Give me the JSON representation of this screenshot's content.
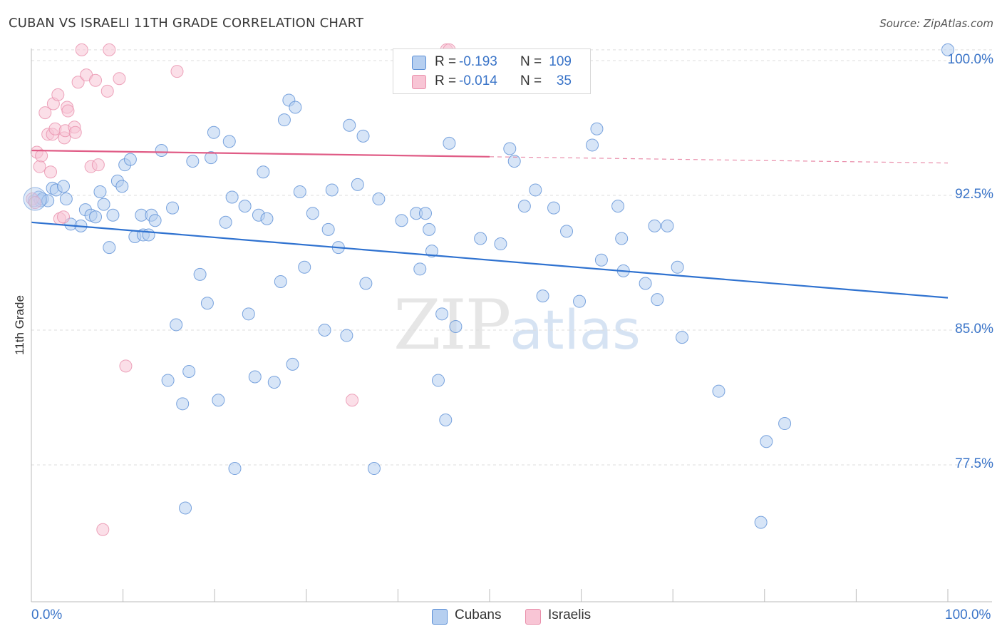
{
  "title": "CUBAN VS ISRAELI 11TH GRADE CORRELATION CHART",
  "source": "Source: ZipAtlas.com",
  "watermark": {
    "zip": "ZIP",
    "atlas": "atlas"
  },
  "colors": {
    "cubans_fill": "#b6cff0",
    "cubans_stroke": "#5b8fd6",
    "cubans_line": "#2f72d0",
    "israelis_fill": "#f8c5d5",
    "israelis_stroke": "#e98fab",
    "israelis_line": "#e05c86",
    "label_blue": "#3a74c8",
    "grid": "#dedede"
  },
  "legend_top": [
    {
      "r_label": "R =",
      "r_value": "-0.193",
      "n_label": "N =",
      "n_value": "109"
    },
    {
      "r_label": "R =",
      "r_value": "-0.014",
      "n_label": "N =",
      "n_value": "35"
    }
  ],
  "legend_bottom": [
    "Cubans",
    "Israelis"
  ],
  "chart_data": {
    "type": "scatter",
    "title": "CUBAN VS ISRAELI 11TH GRADE CORRELATION CHART",
    "xlabel": "",
    "ylabel": "11th Grade",
    "xlim": [
      0,
      100
    ],
    "ylim": [
      71.5,
      101
    ],
    "x_tick_labels": [
      "0.0%",
      "100.0%"
    ],
    "y_ticks": [
      77.5,
      85.0,
      92.5,
      100.0
    ],
    "y_tick_labels": [
      "77.5%",
      "85.0%",
      "92.5%",
      "100.0%"
    ],
    "grid": true,
    "legend_position": "bottom",
    "series": [
      {
        "name": "Cubans",
        "R": -0.193,
        "N": 109,
        "trend": {
          "x": [
            0,
            100
          ],
          "y": [
            91.0,
            86.8
          ],
          "solid_until": 100
        },
        "points": [
          [
            0.3,
            92.2
          ],
          [
            0.8,
            92.4
          ],
          [
            1.0,
            92.2
          ],
          [
            1.2,
            92.3
          ],
          [
            1.8,
            92.2
          ],
          [
            2.3,
            92.9
          ],
          [
            2.7,
            92.8
          ],
          [
            3.5,
            93.0
          ],
          [
            3.8,
            92.3
          ],
          [
            4.3,
            90.9
          ],
          [
            5.4,
            90.8
          ],
          [
            5.9,
            91.7
          ],
          [
            6.5,
            91.4
          ],
          [
            7.0,
            91.3
          ],
          [
            7.5,
            92.7
          ],
          [
            7.9,
            92.0
          ],
          [
            8.5,
            89.6
          ],
          [
            8.9,
            91.4
          ],
          [
            9.4,
            93.3
          ],
          [
            9.9,
            93.0
          ],
          [
            10.2,
            94.2
          ],
          [
            10.8,
            94.5
          ],
          [
            11.3,
            90.2
          ],
          [
            12.0,
            91.4
          ],
          [
            12.2,
            90.3
          ],
          [
            12.8,
            90.3
          ],
          [
            13.1,
            91.4
          ],
          [
            13.5,
            91.1
          ],
          [
            14.2,
            95.0
          ],
          [
            14.9,
            82.2
          ],
          [
            15.4,
            91.8
          ],
          [
            15.8,
            85.3
          ],
          [
            16.5,
            80.9
          ],
          [
            16.8,
            75.1
          ],
          [
            17.2,
            82.7
          ],
          [
            17.6,
            94.4
          ],
          [
            18.4,
            88.1
          ],
          [
            19.2,
            86.5
          ],
          [
            19.6,
            94.6
          ],
          [
            19.9,
            96.0
          ],
          [
            20.4,
            81.1
          ],
          [
            21.2,
            91.0
          ],
          [
            21.6,
            95.5
          ],
          [
            21.9,
            92.4
          ],
          [
            22.2,
            77.3
          ],
          [
            23.3,
            91.9
          ],
          [
            23.7,
            85.9
          ],
          [
            24.4,
            82.4
          ],
          [
            24.8,
            91.4
          ],
          [
            25.3,
            93.8
          ],
          [
            25.7,
            91.2
          ],
          [
            26.5,
            82.1
          ],
          [
            27.2,
            87.7
          ],
          [
            27.6,
            96.7
          ],
          [
            28.1,
            97.8
          ],
          [
            28.5,
            83.1
          ],
          [
            28.8,
            97.4
          ],
          [
            29.3,
            92.7
          ],
          [
            29.8,
            88.5
          ],
          [
            30.7,
            91.5
          ],
          [
            32.0,
            85.0
          ],
          [
            32.4,
            90.6
          ],
          [
            32.8,
            92.8
          ],
          [
            33.5,
            89.6
          ],
          [
            34.4,
            84.7
          ],
          [
            34.7,
            96.4
          ],
          [
            35.6,
            93.1
          ],
          [
            36.2,
            95.8
          ],
          [
            36.5,
            87.6
          ],
          [
            37.4,
            77.3
          ],
          [
            37.9,
            92.3
          ],
          [
            40.4,
            91.1
          ],
          [
            42.0,
            91.5
          ],
          [
            42.4,
            88.4
          ],
          [
            43.0,
            91.5
          ],
          [
            43.4,
            90.6
          ],
          [
            43.7,
            89.4
          ],
          [
            44.4,
            82.2
          ],
          [
            44.8,
            85.9
          ],
          [
            45.2,
            80.0
          ],
          [
            45.6,
            95.4
          ],
          [
            46.3,
            85.2
          ],
          [
            49.0,
            90.1
          ],
          [
            51.2,
            89.8
          ],
          [
            52.2,
            95.1
          ],
          [
            52.7,
            94.4
          ],
          [
            53.8,
            91.9
          ],
          [
            55.0,
            92.8
          ],
          [
            55.8,
            86.9
          ],
          [
            57.0,
            91.8
          ],
          [
            58.4,
            90.5
          ],
          [
            59.8,
            86.6
          ],
          [
            61.2,
            95.3
          ],
          [
            61.7,
            96.2
          ],
          [
            62.2,
            88.9
          ],
          [
            64.0,
            91.9
          ],
          [
            64.4,
            90.1
          ],
          [
            64.6,
            88.3
          ],
          [
            67.0,
            87.6
          ],
          [
            68.0,
            90.8
          ],
          [
            68.3,
            86.7
          ],
          [
            69.4,
            90.8
          ],
          [
            70.5,
            88.5
          ],
          [
            71.0,
            84.6
          ],
          [
            75.0,
            81.6
          ],
          [
            80.2,
            78.8
          ],
          [
            82.2,
            79.8
          ],
          [
            79.6,
            74.3
          ],
          [
            100.0,
            100.6
          ]
        ]
      },
      {
        "name": "Israelis",
        "R": -0.014,
        "N": 35,
        "trend": {
          "x": [
            0,
            100
          ],
          "y": [
            95.0,
            94.3
          ],
          "solid_until": 50
        },
        "points": [
          [
            0.1,
            92.3
          ],
          [
            0.4,
            92.1
          ],
          [
            0.6,
            94.9
          ],
          [
            0.9,
            94.1
          ],
          [
            1.1,
            94.7
          ],
          [
            1.5,
            97.1
          ],
          [
            1.8,
            95.9
          ],
          [
            2.1,
            93.8
          ],
          [
            2.3,
            95.9
          ],
          [
            2.4,
            97.6
          ],
          [
            2.6,
            96.2
          ],
          [
            2.9,
            98.1
          ],
          [
            3.1,
            91.2
          ],
          [
            3.5,
            91.3
          ],
          [
            3.6,
            95.7
          ],
          [
            3.7,
            96.1
          ],
          [
            3.9,
            97.4
          ],
          [
            4.0,
            97.2
          ],
          [
            4.7,
            96.3
          ],
          [
            4.8,
            96.0
          ],
          [
            5.1,
            98.8
          ],
          [
            5.5,
            100.6
          ],
          [
            6.0,
            99.2
          ],
          [
            6.5,
            94.1
          ],
          [
            7.0,
            98.9
          ],
          [
            7.3,
            94.2
          ],
          [
            7.8,
            73.9
          ],
          [
            8.3,
            98.3
          ],
          [
            8.5,
            100.6
          ],
          [
            9.6,
            99.0
          ],
          [
            10.3,
            83.0
          ],
          [
            15.9,
            99.4
          ],
          [
            35.0,
            81.1
          ],
          [
            45.3,
            100.6
          ],
          [
            45.6,
            100.6
          ]
        ]
      }
    ]
  }
}
